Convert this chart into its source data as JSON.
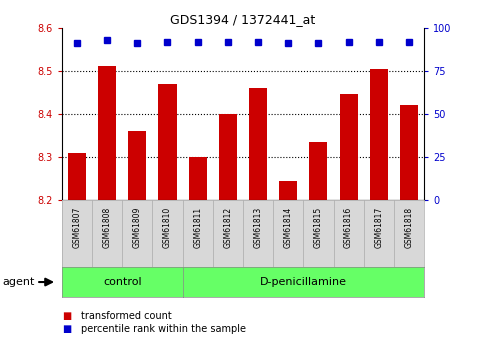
{
  "title": "GDS1394 / 1372441_at",
  "samples": [
    "GSM61807",
    "GSM61808",
    "GSM61809",
    "GSM61810",
    "GSM61811",
    "GSM61812",
    "GSM61813",
    "GSM61814",
    "GSM61815",
    "GSM61816",
    "GSM61817",
    "GSM61818"
  ],
  "bar_values": [
    8.31,
    8.51,
    8.36,
    8.47,
    8.3,
    8.4,
    8.46,
    8.245,
    8.335,
    8.445,
    8.505,
    8.42
  ],
  "percentile_values": [
    91.25,
    93.0,
    91.25,
    91.75,
    91.5,
    91.5,
    91.5,
    91.25,
    91.25,
    91.5,
    91.5,
    91.5
  ],
  "bar_color": "#cc0000",
  "percentile_color": "#0000cc",
  "ylim_left": [
    8.2,
    8.6
  ],
  "ylim_right": [
    0,
    100
  ],
  "yticks_left": [
    8.2,
    8.3,
    8.4,
    8.5,
    8.6
  ],
  "yticks_right": [
    0,
    25,
    50,
    75,
    100
  ],
  "grid_values": [
    8.3,
    8.4,
    8.5
  ],
  "control_n": 4,
  "treatment_n": 8,
  "control_label": "control",
  "treatment_label": "D-penicillamine",
  "agent_label": "agent",
  "legend_bar_label": "transformed count",
  "legend_pct_label": "percentile rank within the sample",
  "tick_label_color_left": "#cc0000",
  "tick_label_color_right": "#0000cc",
  "bar_width": 0.6,
  "group_bg_color": "#66ff66",
  "tick_bg_color": "#d8d8d8",
  "fig_bg_color": "#ffffff"
}
